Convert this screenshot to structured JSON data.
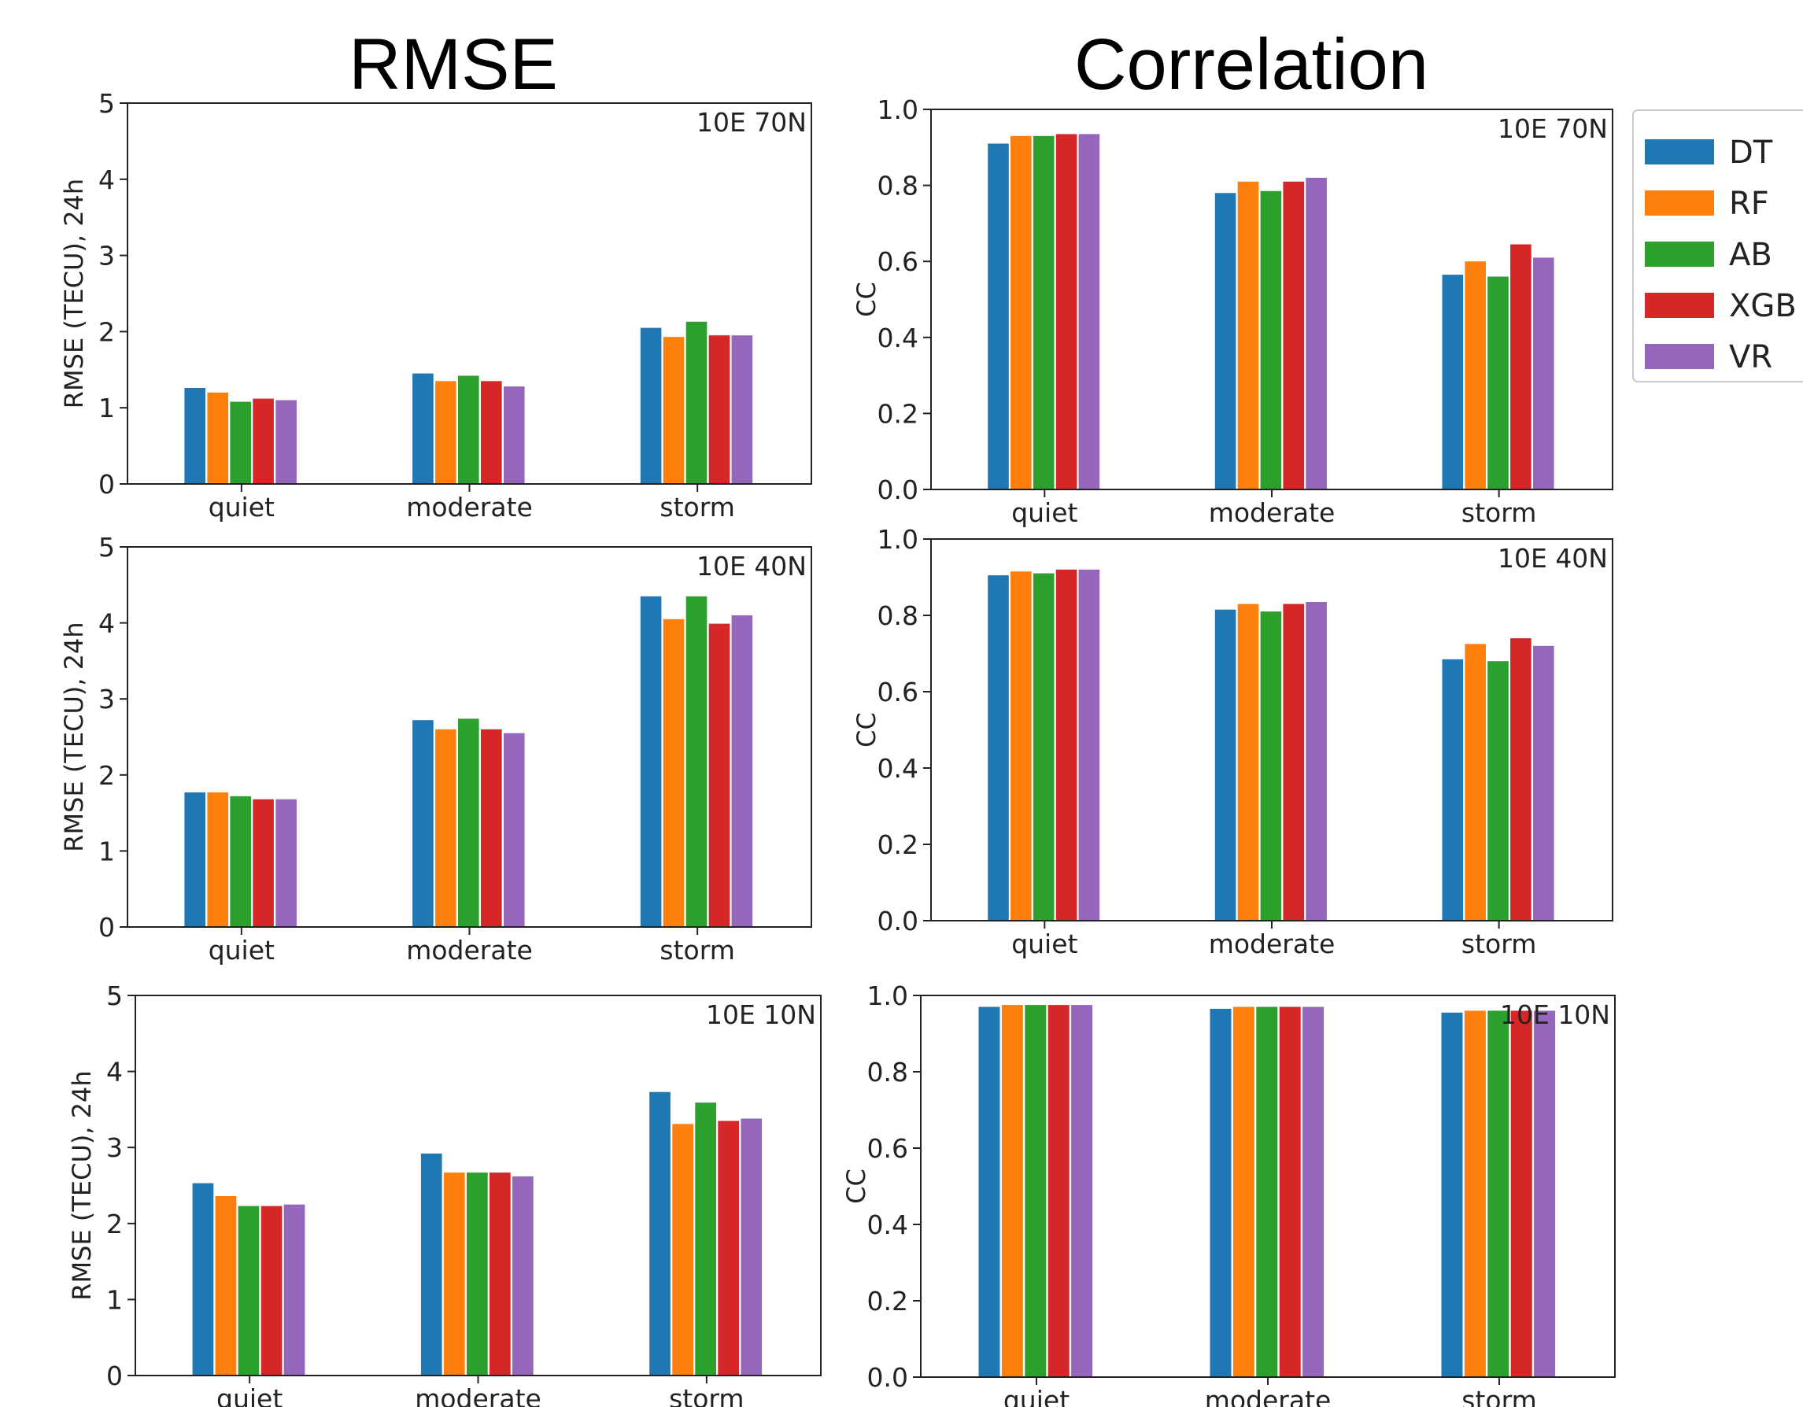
{
  "column_titles": {
    "left": "RMSE",
    "right": "Correlation"
  },
  "legend": {
    "entries": [
      {
        "label": "DT",
        "color": "#1f77b4"
      },
      {
        "label": "RF",
        "color": "#ff7f0e"
      },
      {
        "label": "AB",
        "color": "#2ca02c"
      },
      {
        "label": "XGB",
        "color": "#d62728"
      },
      {
        "label": "VR",
        "color": "#9467bd"
      }
    ],
    "placement": "right of top-right panel, clipped at image edge"
  },
  "chart_data": [
    {
      "type": "bar",
      "annotation": "10E 70N",
      "ylabel": "RMSE (TECU), 24h",
      "ylim": [
        0,
        5
      ],
      "yticks": [
        "0",
        "1",
        "2",
        "3",
        "4",
        "5"
      ],
      "categories": [
        "quiet",
        "moderate",
        "storm"
      ],
      "series": [
        {
          "name": "DT",
          "values": [
            1.26,
            1.45,
            2.05
          ]
        },
        {
          "name": "RF",
          "values": [
            1.2,
            1.35,
            1.93
          ]
        },
        {
          "name": "AB",
          "values": [
            1.08,
            1.42,
            2.13
          ]
        },
        {
          "name": "XGB",
          "values": [
            1.12,
            1.35,
            1.95
          ]
        },
        {
          "name": "VR",
          "values": [
            1.1,
            1.28,
            1.95
          ]
        }
      ]
    },
    {
      "type": "bar",
      "annotation": "10E 70N",
      "ylabel": "CC",
      "ylim": [
        0,
        1
      ],
      "yticks": [
        "0.0",
        "0.2",
        "0.4",
        "0.6",
        "0.8",
        "1.0"
      ],
      "categories": [
        "quiet",
        "moderate",
        "storm"
      ],
      "series": [
        {
          "name": "DT",
          "values": [
            0.91,
            0.78,
            0.565
          ]
        },
        {
          "name": "RF",
          "values": [
            0.93,
            0.81,
            0.6
          ]
        },
        {
          "name": "AB",
          "values": [
            0.93,
            0.785,
            0.56
          ]
        },
        {
          "name": "XGB",
          "values": [
            0.935,
            0.81,
            0.645
          ]
        },
        {
          "name": "VR",
          "values": [
            0.935,
            0.82,
            0.61
          ]
        }
      ]
    },
    {
      "type": "bar",
      "annotation": "10E 40N",
      "ylabel": "RMSE (TECU), 24h",
      "ylim": [
        0,
        5
      ],
      "yticks": [
        "0",
        "1",
        "2",
        "3",
        "4",
        "5"
      ],
      "categories": [
        "quiet",
        "moderate",
        "storm"
      ],
      "series": [
        {
          "name": "DT",
          "values": [
            1.77,
            2.72,
            4.35
          ]
        },
        {
          "name": "RF",
          "values": [
            1.77,
            2.6,
            4.05
          ]
        },
        {
          "name": "AB",
          "values": [
            1.72,
            2.74,
            4.35
          ]
        },
        {
          "name": "XGB",
          "values": [
            1.68,
            2.6,
            3.99
          ]
        },
        {
          "name": "VR",
          "values": [
            1.68,
            2.55,
            4.1
          ]
        }
      ]
    },
    {
      "type": "bar",
      "annotation": "10E 40N",
      "ylabel": "CC",
      "ylim": [
        0,
        1
      ],
      "yticks": [
        "0.0",
        "0.2",
        "0.4",
        "0.6",
        "0.8",
        "1.0"
      ],
      "categories": [
        "quiet",
        "moderate",
        "storm"
      ],
      "series": [
        {
          "name": "DT",
          "values": [
            0.905,
            0.815,
            0.685
          ]
        },
        {
          "name": "RF",
          "values": [
            0.915,
            0.83,
            0.725
          ]
        },
        {
          "name": "AB",
          "values": [
            0.91,
            0.81,
            0.68
          ]
        },
        {
          "name": "XGB",
          "values": [
            0.92,
            0.83,
            0.74
          ]
        },
        {
          "name": "VR",
          "values": [
            0.92,
            0.835,
            0.72
          ]
        }
      ]
    },
    {
      "type": "bar",
      "annotation": "10E 10N",
      "ylabel": "RMSE (TECU), 24h",
      "ylim": [
        0,
        5
      ],
      "yticks": [
        "0",
        "1",
        "2",
        "3",
        "4",
        "5"
      ],
      "categories": [
        "quiet",
        "moderate",
        "storm"
      ],
      "series": [
        {
          "name": "DT",
          "values": [
            2.53,
            2.92,
            3.73
          ]
        },
        {
          "name": "RF",
          "values": [
            2.36,
            2.67,
            3.31
          ]
        },
        {
          "name": "AB",
          "values": [
            2.23,
            2.67,
            3.59
          ]
        },
        {
          "name": "XGB",
          "values": [
            2.23,
            2.67,
            3.35
          ]
        },
        {
          "name": "VR",
          "values": [
            2.25,
            2.62,
            3.38
          ]
        }
      ]
    },
    {
      "type": "bar",
      "annotation": "10E 10N",
      "ylabel": "CC",
      "ylim": [
        0,
        1
      ],
      "yticks": [
        "0.0",
        "0.2",
        "0.4",
        "0.6",
        "0.8",
        "1.0"
      ],
      "categories": [
        "quiet",
        "moderate",
        "storm"
      ],
      "series": [
        {
          "name": "DT",
          "values": [
            0.97,
            0.965,
            0.955
          ]
        },
        {
          "name": "RF",
          "values": [
            0.975,
            0.97,
            0.96
          ]
        },
        {
          "name": "AB",
          "values": [
            0.975,
            0.97,
            0.96
          ]
        },
        {
          "name": "XGB",
          "values": [
            0.975,
            0.97,
            0.96
          ]
        },
        {
          "name": "VR",
          "values": [
            0.975,
            0.97,
            0.96
          ]
        }
      ]
    }
  ]
}
